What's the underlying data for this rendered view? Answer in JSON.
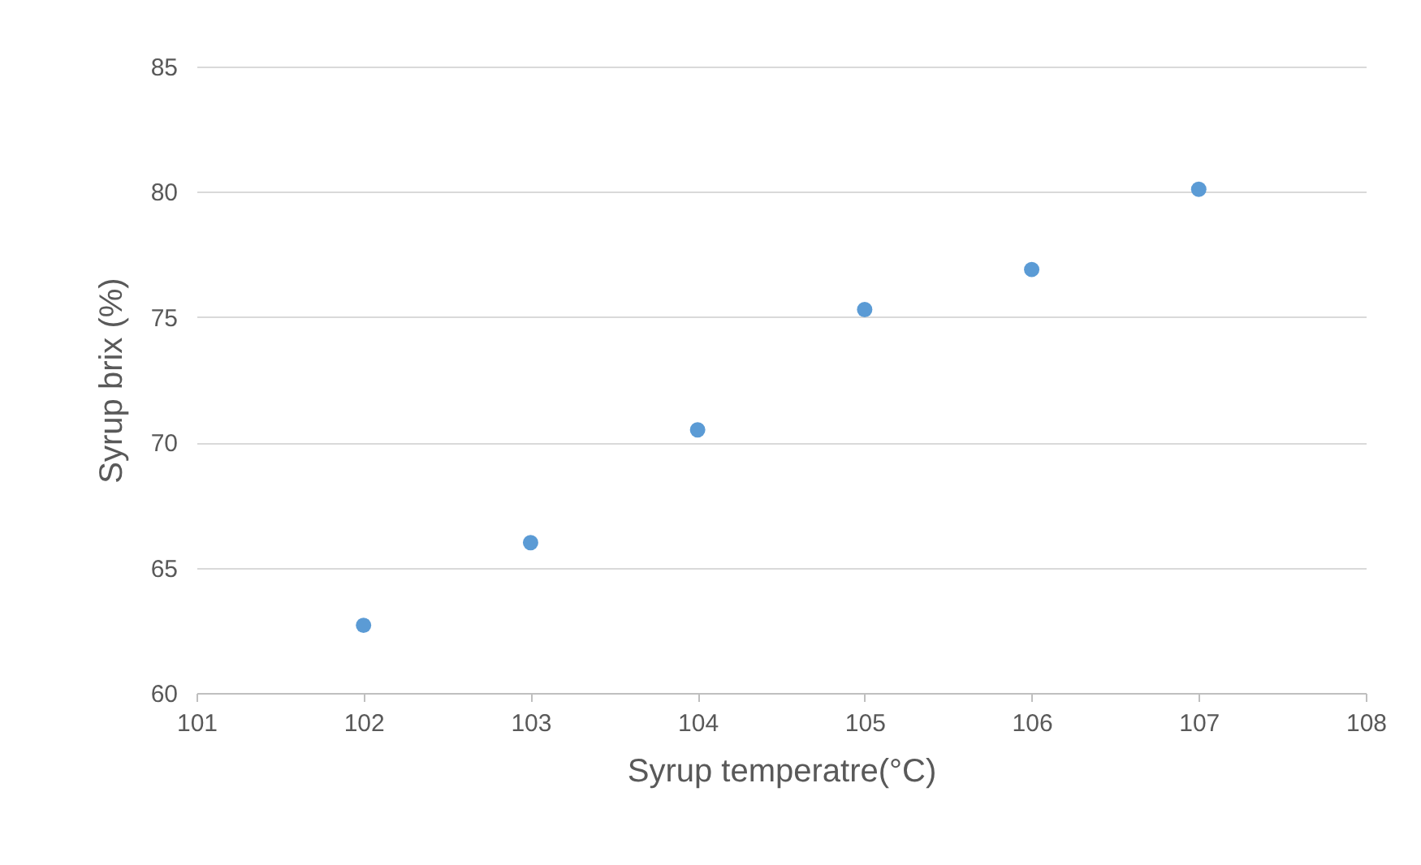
{
  "chart_data": {
    "type": "scatter",
    "xlabel": "Syrup temperatre(°C)",
    "ylabel": "Syrup brix (%)",
    "x": [
      102,
      103,
      104,
      105,
      106,
      107
    ],
    "series": [
      {
        "color": "#5b9bd5",
        "values": [
          62.7,
          66.0,
          70.5,
          75.3,
          76.9,
          80.1
        ]
      }
    ],
    "xlim": [
      101,
      108
    ],
    "xticks": [
      101,
      102,
      103,
      104,
      105,
      106,
      107,
      108
    ],
    "ylim": [
      60,
      85
    ],
    "yticks": [
      60,
      65,
      70,
      75,
      80,
      85
    ],
    "grid": "y",
    "marker": "circle",
    "legend": false
  }
}
